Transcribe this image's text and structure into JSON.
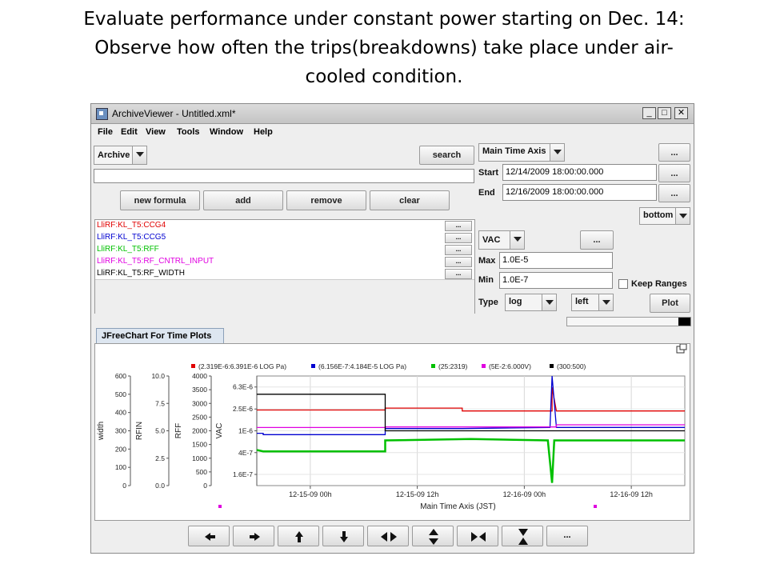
{
  "slide": {
    "title_line1": "Evaluate performance under constant power starting on Dec. 14:",
    "title_line2": "Observe how often the trips(breakdowns) take place under air-",
    "title_line3": "cooled condition."
  },
  "window": {
    "title": "ArchiveViewer - Untitled.xml*",
    "controls": {
      "minimize": "_",
      "maximize": "□",
      "close": "✕"
    }
  },
  "menu": [
    "File",
    "Edit",
    "View",
    "Tools",
    "Window",
    "Help"
  ],
  "archive": {
    "selected": "Archive",
    "search_label": "search",
    "filter_value": ""
  },
  "formula_buttons": {
    "new_formula": "new formula",
    "add": "add",
    "remove": "remove",
    "clear": "clear"
  },
  "pv_list": [
    {
      "name": "LliRF:KL_T5:CCG4",
      "color": "#e00000"
    },
    {
      "name": "LliRF:KL_T5:CCG5",
      "color": "#0000d0"
    },
    {
      "name": "LliRF:KL_T5:RFF",
      "color": "#00c000"
    },
    {
      "name": "LliRF:KL_T5:RF_CNTRL_INPUT",
      "color": "#e000e0"
    },
    {
      "name": "LliRF:KL_T5:RF_WIDTH",
      "color": "#000000"
    }
  ],
  "pv_more_label": "...",
  "time_axis": {
    "selected": "Main Time Axis",
    "more_label": "...",
    "start_label": "Start",
    "start_value": "12/14/2009 18:00:00.000",
    "end_label": "End",
    "end_value": "12/16/2009 18:00:00.000",
    "position": "bottom"
  },
  "value_axis": {
    "selected": "VAC",
    "more_label": "...",
    "max_label": "Max",
    "max_value": "1.0E-5",
    "min_label": "Min",
    "min_value": "1.0E-7",
    "keep_ranges_label": "Keep Ranges",
    "type_label": "Type",
    "type_value": "log",
    "side_value": "left",
    "plot_label": "Plot"
  },
  "progress": {
    "fraction": 0.1
  },
  "tab_label": "JFreeChart For Time Plots",
  "chart_data": {
    "type": "line",
    "title": "",
    "legend_position": "top",
    "legend": [
      {
        "text": "(2.319E-6:6.391E-6 LOG Pa)",
        "color": "#e00000"
      },
      {
        "text": "(6.156E-7:4.184E-5 LOG Pa)",
        "color": "#0000d0"
      },
      {
        "text": "(25:2319)",
        "color": "#00c000"
      },
      {
        "text": "(5E-2:6.000V)",
        "color": "#e000e0"
      },
      {
        "text": "(300:500)",
        "color": "#000000"
      }
    ],
    "xlabel": "Main Time Axis (JST)",
    "x_ticks": [
      "12-15-09 00h",
      "12-15-09 12h",
      "12-16-09 00h",
      "12-16-09 12h"
    ],
    "x_range": [
      "12-14-09 18h",
      "12-16-09 18h"
    ],
    "grid": true,
    "axes": [
      {
        "label": "width",
        "ticks": [
          "600",
          "500",
          "400",
          "300",
          "200",
          "100",
          "0"
        ],
        "range": [
          0,
          600
        ]
      },
      {
        "label": "RFIN",
        "ticks": [
          "10.0",
          "7.5",
          "5.0",
          "2.5",
          "0.0"
        ],
        "range": [
          0,
          10
        ]
      },
      {
        "label": "RFF",
        "ticks": [
          "4000",
          "3500",
          "3000",
          "2500",
          "2000",
          "1500",
          "1000",
          "500",
          "0"
        ],
        "range": [
          0,
          4000
        ]
      },
      {
        "label": "VAC",
        "ticks": [
          "6.3E-6",
          "2.5E-6",
          "1E-6",
          "4E-7",
          "1.6E-7"
        ],
        "scale": "log",
        "range": [
          1e-07,
          1e-05
        ]
      }
    ],
    "series": [
      {
        "color": "#e00000",
        "axis": 3,
        "points": [
          [
            0.0,
            2.4e-06
          ],
          [
            0.03,
            2.4e-06
          ],
          [
            0.6,
            2.4e-06
          ],
          [
            0.6,
            2.6e-06
          ],
          [
            0.96,
            2.6e-06
          ],
          [
            0.96,
            2.3e-06
          ],
          [
            1.38,
            2.3e-06
          ],
          [
            1.38,
            6.2e-06
          ],
          [
            1.4,
            2.3e-06
          ],
          [
            2.0,
            2.3e-06
          ]
        ]
      },
      {
        "color": "#0000d0",
        "axis": 3,
        "points": [
          [
            0.0,
            9e-07
          ],
          [
            0.03,
            9e-07
          ],
          [
            0.03,
            8.5e-07
          ],
          [
            0.6,
            8.5e-07
          ],
          [
            0.6,
            1.1e-06
          ],
          [
            0.96,
            1.1e-06
          ],
          [
            1.37,
            1.15e-06
          ],
          [
            1.38,
            1e-05
          ],
          [
            1.4,
            1.15e-06
          ],
          [
            2.0,
            1.15e-06
          ]
        ]
      },
      {
        "color": "#00c000",
        "axis": 2,
        "points": [
          [
            0.0,
            1300
          ],
          [
            0.03,
            1250
          ],
          [
            0.6,
            1250
          ],
          [
            0.6,
            1650
          ],
          [
            1.0,
            1700
          ],
          [
            1.36,
            1650
          ],
          [
            1.38,
            100
          ],
          [
            1.39,
            1650
          ],
          [
            2.0,
            1650
          ]
        ]
      },
      {
        "color": "#e000e0",
        "axis": 1,
        "points": [
          [
            0.0,
            5.3
          ],
          [
            0.6,
            5.3
          ],
          [
            0.6,
            5.35
          ],
          [
            1.4,
            5.35
          ],
          [
            1.4,
            5.55
          ],
          [
            2.0,
            5.55
          ]
        ]
      },
      {
        "color": "#000000",
        "axis": 0,
        "points": [
          [
            0.0,
            500
          ],
          [
            0.03,
            500
          ],
          [
            0.6,
            500
          ],
          [
            0.6,
            300
          ],
          [
            2.0,
            300
          ]
        ]
      }
    ]
  },
  "nav_buttons": [
    {
      "name": "left-arrow-icon"
    },
    {
      "name": "right-arrow-icon"
    },
    {
      "name": "up-arrow-icon"
    },
    {
      "name": "down-arrow-icon"
    },
    {
      "name": "expand-horizontal-icon"
    },
    {
      "name": "expand-vertical-icon"
    },
    {
      "name": "contract-horizontal-icon"
    },
    {
      "name": "contract-vertical-icon"
    },
    {
      "name": "more-icon",
      "label": "..."
    }
  ]
}
